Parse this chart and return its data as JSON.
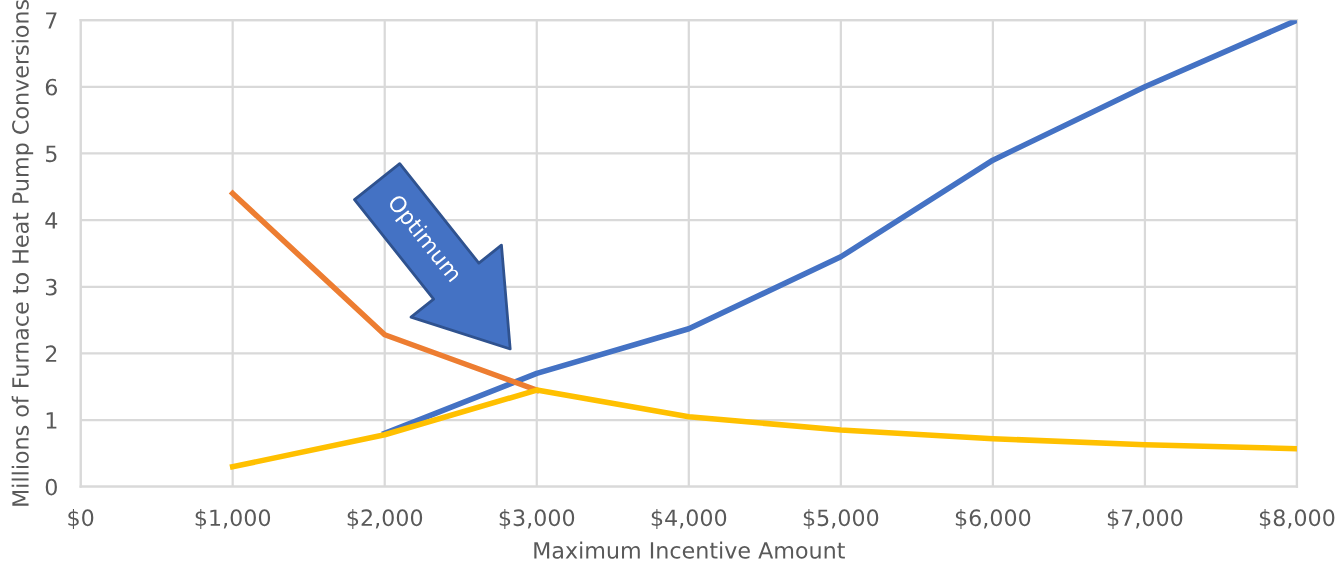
{
  "chart_data": {
    "type": "line",
    "xlabel": "Maximum Incentive Amount",
    "ylabel": "Millions of Furnace to Heat Pump Conversions",
    "xlim": [
      0,
      8000
    ],
    "ylim": [
      0,
      7
    ],
    "xticks": [
      {
        "value": 0,
        "label": "$0"
      },
      {
        "value": 1000,
        "label": "$1,000"
      },
      {
        "value": 2000,
        "label": "$2,000"
      },
      {
        "value": 3000,
        "label": "$3,000"
      },
      {
        "value": 4000,
        "label": "$4,000"
      },
      {
        "value": 5000,
        "label": "$5,000"
      },
      {
        "value": 6000,
        "label": "$6,000"
      },
      {
        "value": 7000,
        "label": "$7,000"
      },
      {
        "value": 8000,
        "label": "$8,000"
      }
    ],
    "yticks": [
      0,
      1,
      2,
      3,
      4,
      5,
      6,
      7
    ],
    "grid": true,
    "legend": false,
    "marker": "none",
    "line_style": "solid",
    "series": [
      {
        "color": "#4472c4",
        "x": [
          2000,
          3000,
          4000,
          5000,
          6000,
          7000,
          8000
        ],
        "values": [
          0.8,
          1.7,
          2.37,
          3.45,
          4.9,
          6.0,
          7.0
        ]
      },
      {
        "color": "#ed7d31",
        "x": [
          1000,
          2000,
          3000
        ],
        "values": [
          4.4,
          2.28,
          1.45
        ]
      },
      {
        "color": "#ffc000",
        "x": [
          1000,
          2000,
          3000,
          4000,
          5000,
          6000,
          7000,
          8000
        ],
        "values": [
          0.3,
          0.78,
          1.45,
          1.05,
          0.85,
          0.72,
          0.63,
          0.57
        ]
      }
    ],
    "annotations": [
      "Optimum"
    ]
  }
}
